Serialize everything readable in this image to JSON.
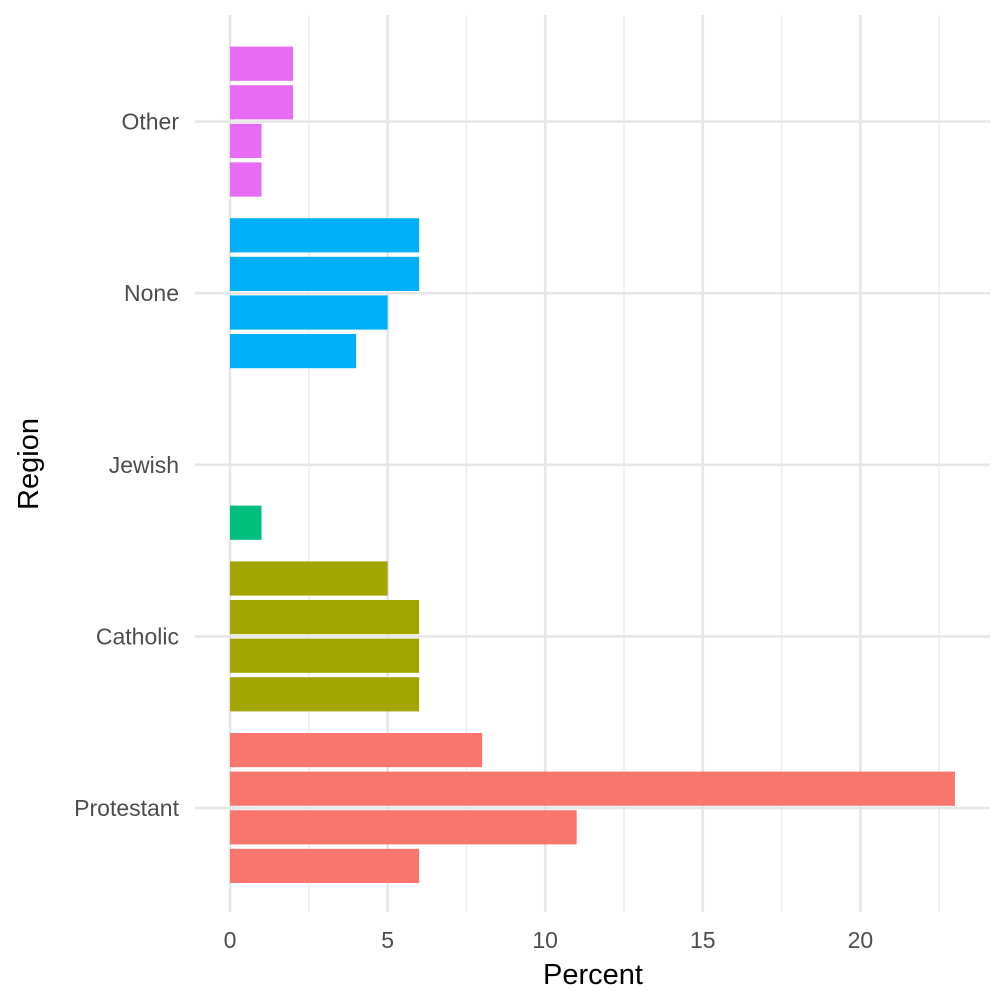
{
  "chart_data": {
    "type": "bar",
    "orientation": "horizontal",
    "xlabel": "Percent",
    "ylabel": "Region",
    "xlim": [
      0,
      23.6
    ],
    "x_ticks": [
      0,
      5,
      10,
      15,
      20
    ],
    "categories": [
      "Protestant",
      "Catholic",
      "Jewish",
      "None",
      "Other"
    ],
    "colors": {
      "Protestant": "#F8766D",
      "Catholic": "#A3A500",
      "Jewish": "#00BF7D",
      "None": "#00B0F6",
      "Other": "#E76BF3"
    },
    "groups": [
      {
        "category": "Protestant",
        "values": [
          6,
          11,
          23,
          8
        ]
      },
      {
        "category": "Catholic",
        "values": [
          6,
          6,
          6,
          5
        ]
      },
      {
        "category": "Jewish",
        "values": [
          1,
          0,
          0,
          0
        ]
      },
      {
        "category": "None",
        "values": [
          4,
          5,
          6,
          6
        ]
      },
      {
        "category": "Other",
        "values": [
          1,
          1,
          2,
          2
        ]
      }
    ]
  }
}
